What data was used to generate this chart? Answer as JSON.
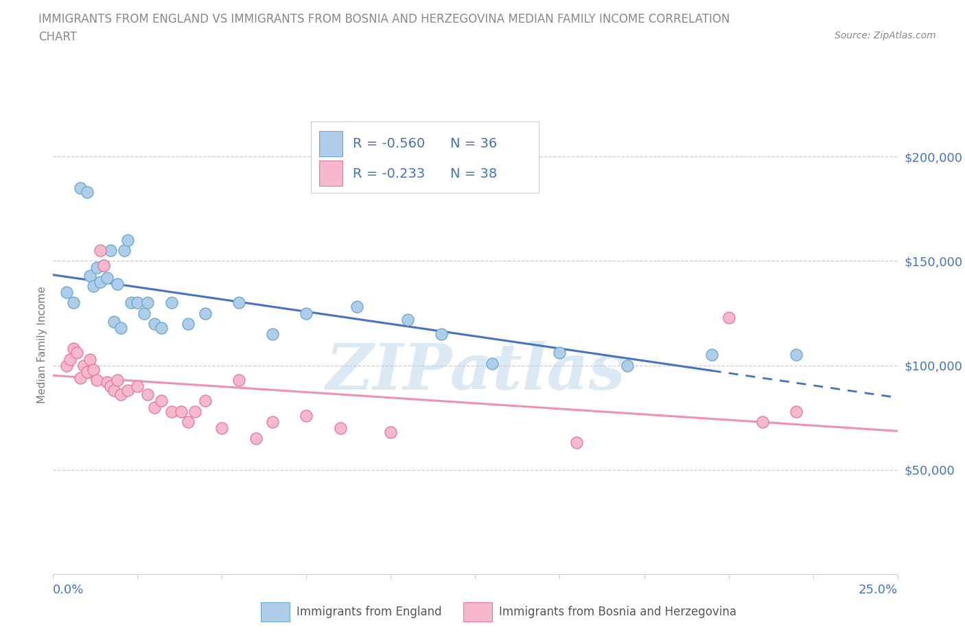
{
  "title_line1": "IMMIGRANTS FROM ENGLAND VS IMMIGRANTS FROM BOSNIA AND HERZEGOVINA MEDIAN FAMILY INCOME CORRELATION",
  "title_line2": "CHART",
  "source": "Source: ZipAtlas.com",
  "ylabel": "Median Family Income",
  "ytick_values": [
    50000,
    100000,
    150000,
    200000
  ],
  "ytick_labels": [
    "$50,000",
    "$100,000",
    "$150,000",
    "$200,000"
  ],
  "ylim": [
    0,
    220000
  ],
  "xlim": [
    0.0,
    0.25
  ],
  "xtick_left_label": "0.0%",
  "xtick_right_label": "25.0%",
  "england_color": "#aecde8",
  "england_edge_color": "#6aaad4",
  "bosnia_color": "#f5b8cc",
  "bosnia_edge_color": "#e87aa0",
  "england_line_color": "#4472c4",
  "bosnia_line_color": "#f090b0",
  "legend_text_color": "#4472c4",
  "england_R": "-0.560",
  "england_N": "36",
  "bosnia_R": "-0.233",
  "bosnia_N": "38",
  "watermark": "ZIPatlas",
  "title_color": "#888888",
  "source_color": "#888888",
  "tick_label_color": "#4472c4",
  "grid_color": "#cccccc",
  "background_color": "#ffffff",
  "bottom_label_england": "Immigrants from England",
  "bottom_label_bosnia": "Immigrants from Bosnia and Herzegovina",
  "england_x": [
    0.004,
    0.006,
    0.008,
    0.01,
    0.011,
    0.012,
    0.013,
    0.014,
    0.015,
    0.016,
    0.017,
    0.018,
    0.019,
    0.02,
    0.021,
    0.022,
    0.023,
    0.025,
    0.027,
    0.028,
    0.03,
    0.032,
    0.035,
    0.04,
    0.045,
    0.055,
    0.065,
    0.075,
    0.09,
    0.105,
    0.115,
    0.13,
    0.15,
    0.17,
    0.195,
    0.22
  ],
  "england_y": [
    135000,
    130000,
    185000,
    183000,
    143000,
    138000,
    147000,
    140000,
    148000,
    142000,
    155000,
    121000,
    139000,
    118000,
    155000,
    160000,
    130000,
    130000,
    125000,
    130000,
    120000,
    118000,
    130000,
    120000,
    125000,
    130000,
    115000,
    125000,
    128000,
    122000,
    115000,
    101000,
    106000,
    100000,
    105000,
    105000
  ],
  "bosnia_x": [
    0.004,
    0.005,
    0.006,
    0.007,
    0.008,
    0.009,
    0.01,
    0.011,
    0.012,
    0.013,
    0.014,
    0.015,
    0.016,
    0.017,
    0.018,
    0.019,
    0.02,
    0.022,
    0.025,
    0.028,
    0.03,
    0.032,
    0.035,
    0.038,
    0.04,
    0.042,
    0.045,
    0.05,
    0.055,
    0.06,
    0.065,
    0.075,
    0.085,
    0.1,
    0.155,
    0.2,
    0.21,
    0.22
  ],
  "bosnia_y": [
    100000,
    103000,
    108000,
    106000,
    94000,
    100000,
    97000,
    103000,
    98000,
    93000,
    155000,
    148000,
    92000,
    90000,
    88000,
    93000,
    86000,
    88000,
    90000,
    86000,
    80000,
    83000,
    78000,
    78000,
    73000,
    78000,
    83000,
    70000,
    93000,
    65000,
    73000,
    76000,
    70000,
    68000,
    63000,
    123000,
    73000,
    78000
  ]
}
